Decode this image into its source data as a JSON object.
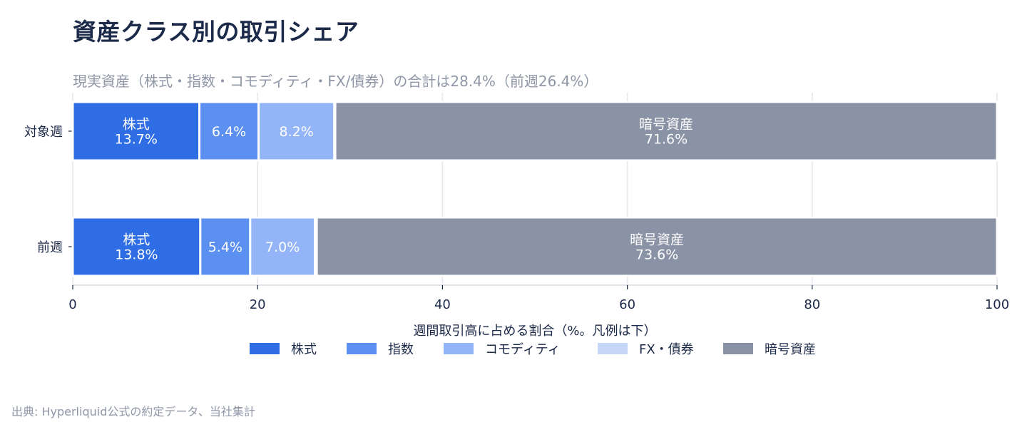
{
  "title": "資産クラス別の取引シェア",
  "subtitle": "現実資産（株式・指数・コモディティ・FX/債券）の合計は28.4%（前週26.4%）",
  "source": "出典: Hyperliquid公式の約定データ、当社集計",
  "chart_data": {
    "type": "bar",
    "orientation": "horizontal",
    "stacked": true,
    "categories": [
      "対象週",
      "前週"
    ],
    "series": [
      {
        "name": "株式",
        "color": "#2f6de4",
        "values": [
          13.7,
          13.8
        ],
        "labels": [
          "株式\n13.7%",
          "株式\n13.8%"
        ]
      },
      {
        "name": "指数",
        "color": "#5b8ff0",
        "values": [
          6.4,
          5.4
        ],
        "labels": [
          "6.4%",
          "5.4%"
        ]
      },
      {
        "name": "コモディティ",
        "color": "#93b4f6",
        "values": [
          8.2,
          7.0
        ],
        "labels": [
          "8.2%",
          "7.0%"
        ]
      },
      {
        "name": "FX・債券",
        "color": "#c6d6f9",
        "values": [
          0.1,
          0.2
        ],
        "labels": [
          "",
          ""
        ]
      },
      {
        "name": "暗号資産",
        "color": "#8a92a5",
        "values": [
          71.6,
          73.6
        ],
        "labels": [
          "暗号資産\n71.6%",
          "暗号資産\n73.6%"
        ]
      }
    ],
    "xlabel": "週間取引高に占める割合（%。凡例は下）",
    "xlim": [
      0,
      100
    ],
    "xticks": [
      0,
      20,
      40,
      60,
      80,
      100
    ],
    "grid": true,
    "legend_position": "bottom"
  }
}
